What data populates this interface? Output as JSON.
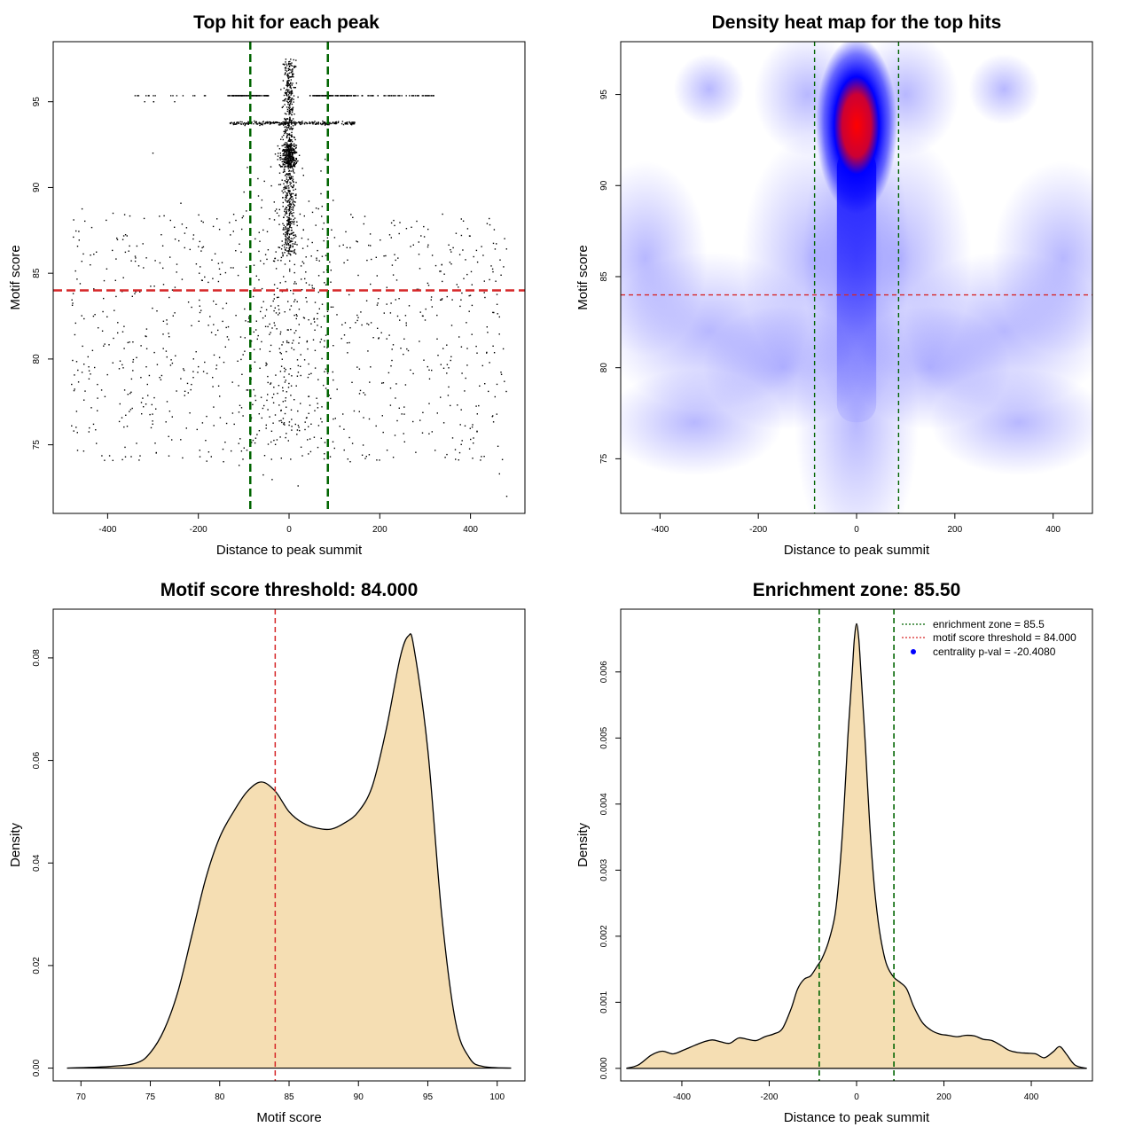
{
  "chart_data": [
    {
      "type": "scatter",
      "title": "Top hit for each peak",
      "xlabel": "Distance to peak summit",
      "ylabel": "Motif score",
      "xlim": [
        -520,
        520
      ],
      "ylim": [
        71,
        98.5
      ],
      "x_ticks": [
        -400,
        -200,
        0,
        200,
        400
      ],
      "y_ticks": [
        75,
        80,
        85,
        90,
        95
      ],
      "x_tick_labels": [
        "-400",
        "-200",
        "0",
        "200",
        "400"
      ],
      "y_tick_labels": [
        "75",
        "80",
        "85",
        "90",
        "95"
      ],
      "points_approx": "~2000 top-hit points; concentrated near x=0 for scores 86-98; horizontal streaks at scores 95.4 and 93.8; broad scatter at scores 74-89",
      "vlines": [
        -85.5,
        85.5
      ],
      "hline": 84.0,
      "colors": {
        "points": "#000000",
        "vlines": "#006400",
        "hline": "#d62728"
      }
    },
    {
      "type": "heatmap",
      "title": "Density heat map for the top hits",
      "xlabel": "Distance to peak summit",
      "ylabel": "Motif score",
      "xlim": [
        -480,
        480
      ],
      "ylim": [
        72,
        97.9
      ],
      "x_ticks": [
        -400,
        -200,
        0,
        200,
        400
      ],
      "y_ticks": [
        75,
        80,
        85,
        90,
        95
      ],
      "x_tick_labels": [
        "-400",
        "-200",
        "0",
        "200",
        "400"
      ],
      "y_tick_labels": [
        "75",
        "80",
        "85",
        "90",
        "95"
      ],
      "peak": {
        "x": 0,
        "y": 93.3
      },
      "vlines": [
        -85.5,
        85.5
      ],
      "hline": 84.0,
      "colors": {
        "low": "#ffffff",
        "mid": "#0000ff",
        "high": "#ff0000",
        "vlines": "#006400",
        "hline": "#d62728"
      }
    },
    {
      "type": "area",
      "title": "Motif score threshold: 84.000",
      "xlabel": "Motif score",
      "ylabel": "Density",
      "xlim": [
        68,
        102
      ],
      "ylim": [
        -0.0025,
        0.0895
      ],
      "x_ticks": [
        70,
        75,
        80,
        85,
        90,
        95,
        100
      ],
      "y_ticks": [
        0.0,
        0.02,
        0.04,
        0.06,
        0.08
      ],
      "x_tick_labels": [
        "70",
        "75",
        "80",
        "85",
        "90",
        "95",
        "100"
      ],
      "y_tick_labels": [
        "0.00",
        "0.02",
        "0.04",
        "0.06",
        "0.08"
      ],
      "x": [
        69.0,
        72.0,
        74.0,
        75.0,
        76.0,
        77.0,
        78.0,
        79.0,
        80.0,
        81.0,
        82.0,
        83.0,
        84.0,
        85.0,
        86.0,
        87.0,
        88.0,
        89.0,
        90.0,
        91.0,
        92.0,
        93.0,
        93.6,
        94.0,
        95.0,
        96.0,
        97.0,
        98.0,
        99.0,
        101.0
      ],
      "y": [
        0.0,
        0.0003,
        0.001,
        0.003,
        0.0075,
        0.015,
        0.026,
        0.037,
        0.045,
        0.05,
        0.054,
        0.0558,
        0.054,
        0.05,
        0.0478,
        0.0468,
        0.0466,
        0.0478,
        0.05,
        0.055,
        0.066,
        0.08,
        0.0843,
        0.082,
        0.062,
        0.03,
        0.009,
        0.002,
        0.0003,
        0.0
      ],
      "vline": 84.0,
      "colors": {
        "fill": "#f5deb3",
        "line": "#000000",
        "vline": "#d62728"
      }
    },
    {
      "type": "area",
      "title": "Enrichment zone: 85.50",
      "xlabel": "Distance to peak summit",
      "ylabel": "Density",
      "xlim": [
        -540,
        540
      ],
      "ylim": [
        -0.00019,
        0.00695
      ],
      "x_ticks": [
        -400,
        -200,
        0,
        200,
        400
      ],
      "y_ticks": [
        0.0,
        0.001,
        0.002,
        0.003,
        0.004,
        0.005,
        0.006
      ],
      "x_tick_labels": [
        "-400",
        "-200",
        "0",
        "200",
        "400"
      ],
      "y_tick_labels": [
        "0.000",
        "0.001",
        "0.002",
        "0.003",
        "0.004",
        "0.005",
        "0.006"
      ],
      "x": [
        -527,
        -500,
        -470,
        -445,
        -420,
        -395,
        -370,
        -350,
        -330,
        -310,
        -290,
        -270,
        -250,
        -230,
        -210,
        -190,
        -170,
        -150,
        -135,
        -120,
        -105,
        -90,
        -80,
        -65,
        -50,
        -40,
        -30,
        -20,
        -10,
        -5,
        0,
        5,
        10,
        20,
        30,
        40,
        50,
        60,
        70,
        85,
        100,
        115,
        130,
        150,
        170,
        190,
        210,
        230,
        250,
        270,
        290,
        310,
        330,
        350,
        370,
        390,
        410,
        430,
        450,
        465,
        480,
        500,
        527
      ],
      "y": [
        0.0,
        5e-05,
        0.0002,
        0.00026,
        0.00022,
        0.00028,
        0.00035,
        0.0004,
        0.00043,
        0.0004,
        0.00038,
        0.00046,
        0.00044,
        0.00042,
        0.00048,
        0.00052,
        0.0006,
        0.0009,
        0.0012,
        0.00135,
        0.0014,
        0.00155,
        0.00165,
        0.0019,
        0.0023,
        0.0029,
        0.0038,
        0.005,
        0.006,
        0.0065,
        0.00673,
        0.0065,
        0.006,
        0.0049,
        0.0037,
        0.0028,
        0.0022,
        0.0018,
        0.00155,
        0.00138,
        0.0013,
        0.0012,
        0.00095,
        0.0007,
        0.00058,
        0.00052,
        0.0005,
        0.00048,
        0.0005,
        0.00049,
        0.00044,
        0.00042,
        0.00035,
        0.00027,
        0.00024,
        0.00023,
        0.00022,
        0.00016,
        0.00025,
        0.00033,
        0.00022,
        5e-05,
        0.0
      ],
      "vlines": [
        -85.5,
        85.5
      ],
      "legend": [
        {
          "label": "enrichment zone = 85.5",
          "symbol": "dotted-line",
          "color": "#006400"
        },
        {
          "label": "motif score threshold = 84.000",
          "symbol": "dotted-line",
          "color": "#d62728"
        },
        {
          "label": "centrality p-val = -20.4080",
          "symbol": "point",
          "color": "#0000ff"
        }
      ],
      "legend_position": "top-right",
      "colors": {
        "fill": "#f5deb3",
        "line": "#000000",
        "vlines": "#006400"
      }
    }
  ]
}
